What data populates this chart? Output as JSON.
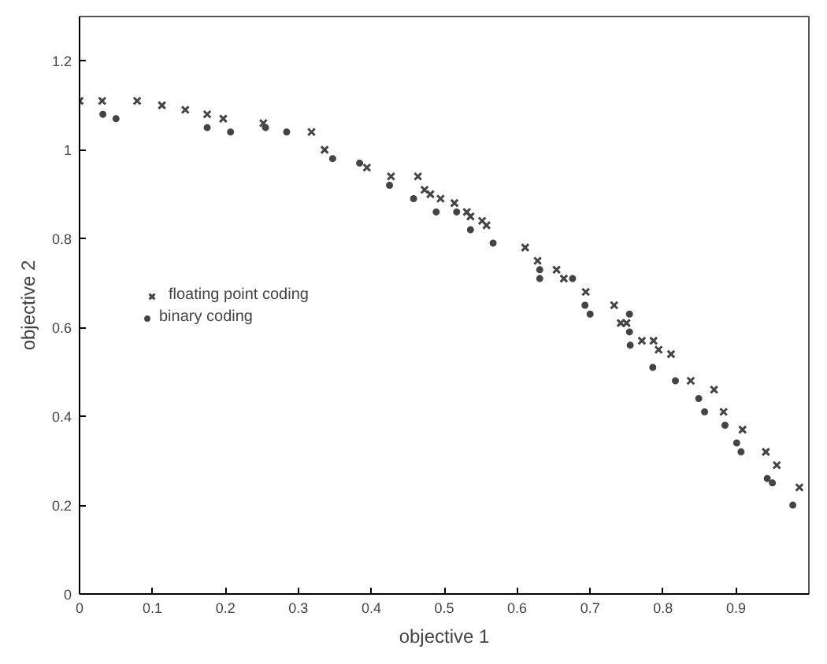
{
  "chart_data": {
    "type": "scatter",
    "xlabel": "objective 1",
    "ylabel": "objective 2",
    "xlim": [
      0,
      1
    ],
    "ylim": [
      0,
      1.3
    ],
    "xticks": [
      0,
      0.1,
      0.2,
      0.3,
      0.4,
      0.5,
      0.6,
      0.7,
      0.8,
      0.9
    ],
    "yticks": [
      0,
      0.2,
      0.4,
      0.6,
      0.8,
      1,
      1.2
    ],
    "grid": false,
    "legend": "left",
    "series": [
      {
        "name": "floating point coding",
        "color": "#444444",
        "marker": "cross",
        "x": [
          0,
          0.031,
          0.079,
          0.113,
          0.145,
          0.175,
          0.197,
          0.252,
          0.318,
          0.336,
          0.394,
          0.427,
          0.464,
          0.473,
          0.481,
          0.495,
          0.514,
          0.531,
          0.536,
          0.552,
          0.558,
          0.611,
          0.628,
          0.654,
          0.664,
          0.694,
          0.733,
          0.742,
          0.75,
          0.771,
          0.787,
          0.794,
          0.811,
          0.838,
          0.87,
          0.883,
          0.909,
          0.941,
          0.956,
          0.987
        ],
        "values": [
          1.11,
          1.11,
          1.11,
          1.1,
          1.09,
          1.08,
          1.07,
          1.06,
          1.04,
          1.0,
          0.96,
          0.94,
          0.94,
          0.91,
          0.9,
          0.89,
          0.88,
          0.86,
          0.85,
          0.84,
          0.83,
          0.78,
          0.75,
          0.73,
          0.71,
          0.68,
          0.65,
          0.61,
          0.61,
          0.57,
          0.57,
          0.55,
          0.54,
          0.48,
          0.46,
          0.41,
          0.37,
          0.32,
          0.29,
          0.24
        ]
      },
      {
        "name": "binary coding",
        "color": "#444444",
        "marker": "circle",
        "x": [
          0.032,
          0.05,
          0.175,
          0.207,
          0.255,
          0.284,
          0.347,
          0.384,
          0.425,
          0.458,
          0.489,
          0.517,
          0.536,
          0.567,
          0.631,
          0.631,
          0.676,
          0.693,
          0.7,
          0.754,
          0.754,
          0.755,
          0.786,
          0.817,
          0.849,
          0.857,
          0.885,
          0.901,
          0.907,
          0.943,
          0.95,
          0.978
        ],
        "values": [
          1.08,
          1.07,
          1.05,
          1.04,
          1.05,
          1.04,
          0.98,
          0.97,
          0.92,
          0.89,
          0.86,
          0.86,
          0.82,
          0.79,
          0.73,
          0.71,
          0.71,
          0.65,
          0.63,
          0.63,
          0.59,
          0.56,
          0.51,
          0.48,
          0.44,
          0.41,
          0.38,
          0.34,
          0.32,
          0.26,
          0.25,
          0.2
        ]
      }
    ]
  }
}
